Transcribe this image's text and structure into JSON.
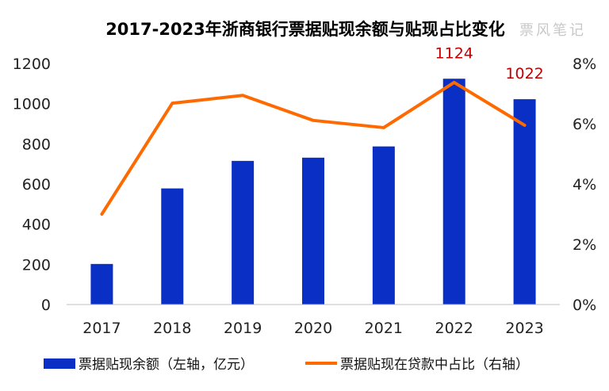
{
  "chart_data": {
    "type": "bar+line",
    "title": "2017-2023年浙商银行票据贴现余额与贴现占比变化",
    "watermark": "票风笔记",
    "categories": [
      "2017",
      "2018",
      "2019",
      "2020",
      "2021",
      "2022",
      "2023"
    ],
    "series": [
      {
        "name": "票据贴现余额（左轴，亿元）",
        "type": "bar",
        "axis": "left",
        "color": "#0a2fc4",
        "values": [
          202,
          578,
          715,
          731,
          787,
          1124,
          1022
        ]
      },
      {
        "name": "票据贴现在贷款中占比（右轴）",
        "type": "line",
        "axis": "right",
        "color": "#ff6a00",
        "values": [
          3.0,
          6.68,
          6.94,
          6.11,
          5.87,
          7.37,
          5.95
        ]
      }
    ],
    "data_labels": [
      {
        "index": 5,
        "text": "1124"
      },
      {
        "index": 6,
        "text": "1022"
      }
    ],
    "left_axis": {
      "ylim": [
        0,
        1200
      ],
      "ticks": [
        "0",
        "200",
        "400",
        "600",
        "800",
        "1000",
        "1200"
      ]
    },
    "right_axis": {
      "ylim": [
        0,
        8
      ],
      "ticks": [
        "0%",
        "2%",
        "4%",
        "6%",
        "8%"
      ]
    },
    "grid": false,
    "legend": "bottom"
  }
}
